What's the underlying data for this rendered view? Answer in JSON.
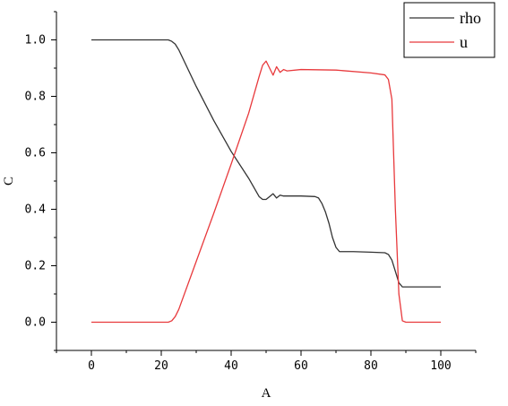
{
  "chart_data": {
    "type": "line",
    "xlabel": "A",
    "ylabel": "C",
    "xlim": [
      -10,
      110
    ],
    "ylim": [
      -0.1,
      1.1
    ],
    "xticks": [
      0,
      20,
      40,
      60,
      80,
      100
    ],
    "xtick_labels": [
      "0",
      "20",
      "40",
      "60",
      "80",
      "100"
    ],
    "yticks": [
      0.0,
      0.2,
      0.4,
      0.6,
      0.8,
      1.0
    ],
    "ytick_labels": [
      "0.0",
      "0.2",
      "0.4",
      "0.6",
      "0.8",
      "1.0"
    ],
    "legend_position": "top-right",
    "grid": false,
    "series": [
      {
        "name": "rho",
        "color": "#333333",
        "x": [
          0,
          22,
          23,
          24,
          25,
          30,
          35,
          40,
          45,
          48,
          49,
          50,
          51,
          52,
          53,
          54,
          55,
          60,
          64,
          65,
          66,
          67,
          68,
          69,
          70,
          71,
          75,
          80,
          84,
          85,
          86,
          87,
          88,
          89,
          90,
          100
        ],
        "y": [
          1.0,
          1.0,
          0.995,
          0.985,
          0.965,
          0.835,
          0.715,
          0.605,
          0.51,
          0.445,
          0.435,
          0.435,
          0.445,
          0.455,
          0.44,
          0.45,
          0.447,
          0.447,
          0.445,
          0.44,
          0.42,
          0.39,
          0.35,
          0.3,
          0.265,
          0.25,
          0.25,
          0.248,
          0.246,
          0.24,
          0.22,
          0.18,
          0.14,
          0.125,
          0.125,
          0.125
        ]
      },
      {
        "name": "u",
        "color": "#e8393c",
        "x": [
          0,
          22,
          23,
          24,
          25,
          30,
          35,
          40,
          45,
          48,
          49,
          50,
          51,
          52,
          53,
          54,
          55,
          56,
          60,
          70,
          80,
          84,
          85,
          86,
          87,
          88,
          89,
          90,
          100
        ],
        "y": [
          0.0,
          0.0,
          0.005,
          0.02,
          0.045,
          0.215,
          0.385,
          0.56,
          0.74,
          0.87,
          0.91,
          0.925,
          0.9,
          0.875,
          0.905,
          0.885,
          0.895,
          0.89,
          0.895,
          0.893,
          0.883,
          0.876,
          0.86,
          0.79,
          0.4,
          0.1,
          0.005,
          0.0,
          0.0
        ]
      }
    ]
  }
}
